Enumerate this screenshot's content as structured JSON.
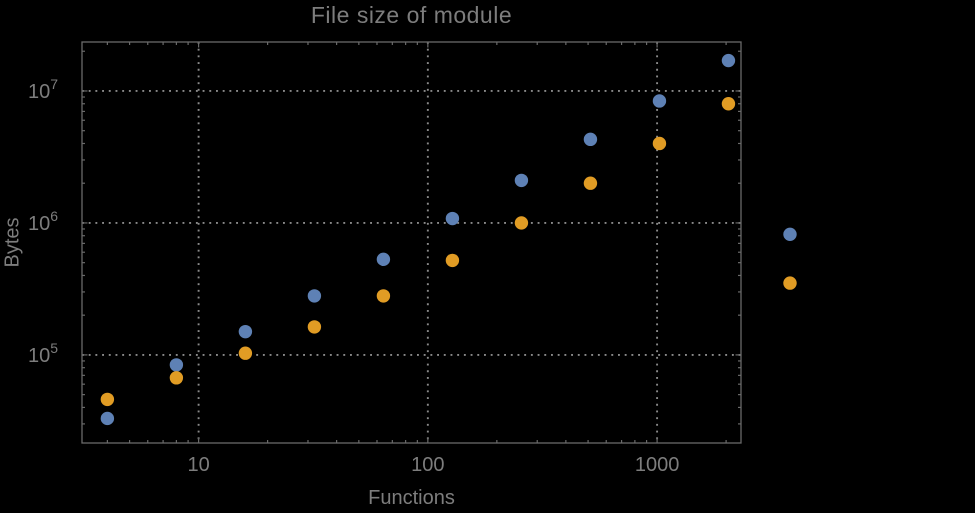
{
  "chart_data": {
    "type": "scatter",
    "title": "File size of module",
    "xlabel": "Functions",
    "ylabel": "Bytes",
    "x_scale": "log",
    "y_scale": "log",
    "xlim": [
      3.1,
      2323
    ],
    "ylim": [
      21500,
      23500000
    ],
    "grid": true,
    "legend": "none",
    "x": [
      4,
      8,
      16,
      32,
      64,
      128,
      256,
      512,
      1024,
      2048,
      3800
    ],
    "series": [
      {
        "name": "blue",
        "color": "#5e81b5",
        "values": [
          33000,
          84000,
          150000,
          280000,
          530000,
          1080000,
          2100000,
          4300000,
          8400000,
          17000000,
          820000
        ]
      },
      {
        "name": "orange",
        "color": "#e19c24",
        "values": [
          46000,
          67000,
          103000,
          163000,
          280000,
          520000,
          1000000,
          2000000,
          4000000,
          8000000,
          350000
        ]
      }
    ],
    "x_major_ticks": [
      10,
      100,
      1000
    ],
    "x_major_labels": [
      "10",
      "100",
      "1000"
    ],
    "x_minor_ticks": [
      4,
      5,
      6,
      7,
      8,
      9,
      20,
      30,
      40,
      50,
      60,
      70,
      80,
      90,
      200,
      300,
      400,
      500,
      600,
      700,
      800,
      900,
      2000
    ],
    "y_major_ticks": [
      100000,
      1000000,
      10000000
    ],
    "y_major_labels": [
      {
        "base": "10",
        "exp": "5"
      },
      {
        "base": "10",
        "exp": "6"
      },
      {
        "base": "10",
        "exp": "7"
      }
    ],
    "y_minor_ticks": [
      30000,
      40000,
      50000,
      60000,
      70000,
      80000,
      90000,
      200000,
      300000,
      400000,
      500000,
      600000,
      700000,
      800000,
      900000,
      2000000,
      3000000,
      4000000,
      5000000,
      6000000,
      7000000,
      8000000,
      9000000,
      20000000
    ]
  },
  "styles": {
    "background": "#000000",
    "frame_color": "#6a6a6a",
    "grid_color": "#8a8a8a",
    "text_color": "#7d7d7d",
    "point_radius": 6.7
  }
}
